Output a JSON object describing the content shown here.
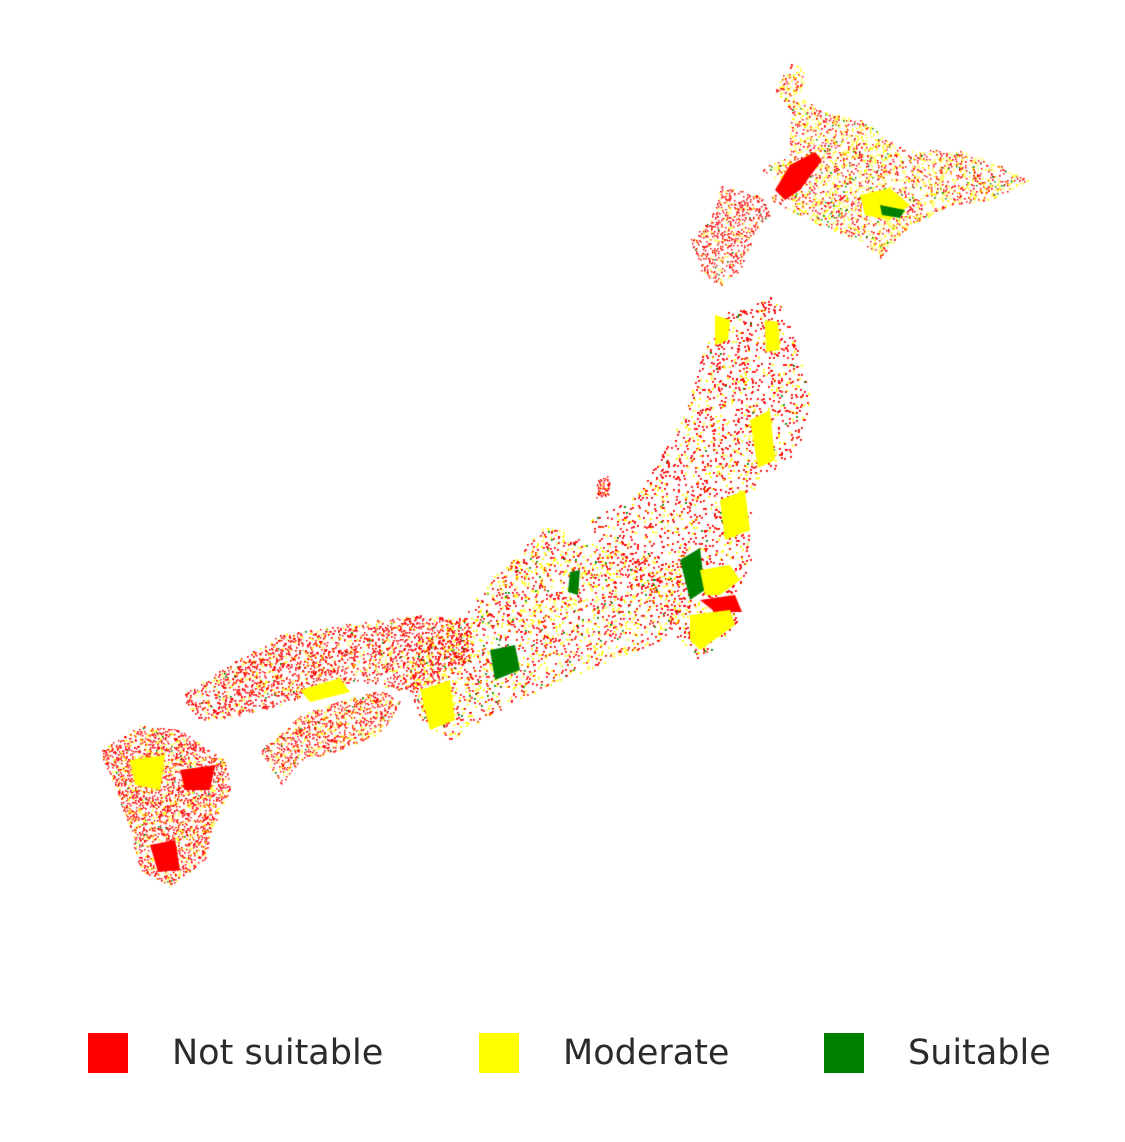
{
  "map": {
    "subject": "Japan suitability map",
    "classes": [
      {
        "key": "not_suitable",
        "label": "Not suitable",
        "color": "#ff0000"
      },
      {
        "key": "moderate",
        "label": "Moderate",
        "color": "#ffff00"
      },
      {
        "key": "suitable",
        "label": "Suitable",
        "color": "#008000"
      }
    ]
  },
  "legend": {
    "items": [
      {
        "label": "Not suitable",
        "color": "#ff0000"
      },
      {
        "label": "Moderate",
        "color": "#ffff00"
      },
      {
        "label": "Suitable",
        "color": "#008000"
      }
    ]
  }
}
